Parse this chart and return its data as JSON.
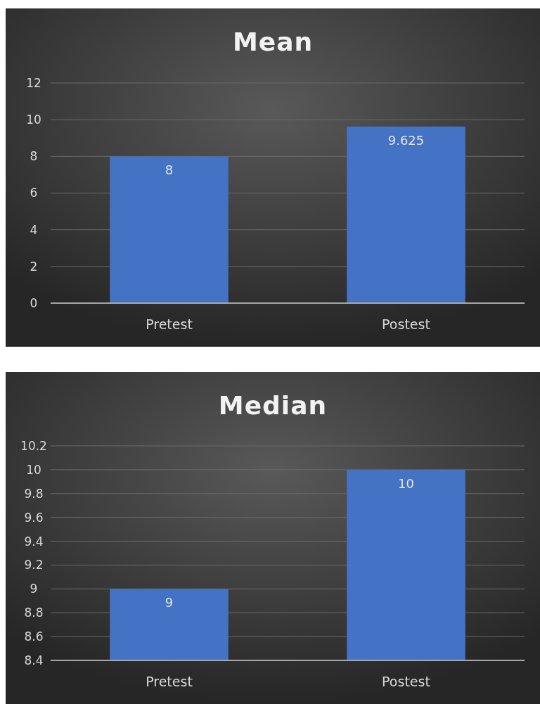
{
  "chart_data": [
    {
      "type": "bar",
      "title": "Mean",
      "categories": [
        "Pretest",
        "Postest"
      ],
      "values": [
        8,
        9.625
      ],
      "color": "#4472c4",
      "ylim": [
        0,
        12
      ],
      "yticks": [
        0,
        2,
        4,
        6,
        8,
        10,
        12
      ],
      "grid": "y",
      "data_labels": true
    },
    {
      "type": "bar",
      "title": "Median",
      "categories": [
        "Pretest",
        "Postest"
      ],
      "values": [
        9,
        10
      ],
      "color": "#4472c4",
      "ylim": [
        8.4,
        10.2
      ],
      "yticks": [
        8.4,
        8.6,
        8.8,
        9,
        9.2,
        9.4,
        9.6,
        9.8,
        10,
        10.2
      ],
      "grid": "y",
      "data_labels": true
    }
  ]
}
